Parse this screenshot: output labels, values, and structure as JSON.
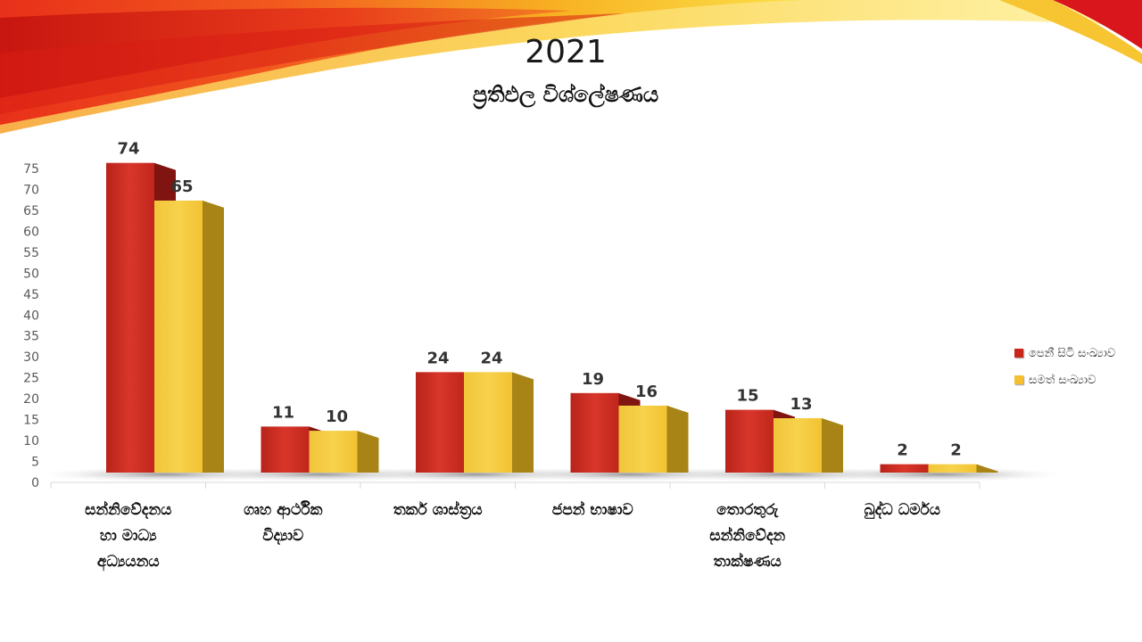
{
  "slide": {
    "title": "2021",
    "subtitle": "ප්‍රතිඵල විශ්ලේෂණය"
  },
  "colors": {
    "series1": "#c9271c",
    "series2": "#f4c030",
    "axis_text": "#595959",
    "grid_line": "#d9d9d9"
  },
  "chart_data": {
    "type": "bar",
    "style": "3d-clustered-column",
    "categories": [
      [
        "සන්නිවේදනය",
        "හා මාධ්‍ය",
        "අධ්‍යයනය"
      ],
      [
        "ගෘහ ආර්ථික",
        "විද්‍යාව"
      ],
      [
        "තර්ක ශාස්ත්‍රය"
      ],
      [
        "ජපන් භාෂාව"
      ],
      [
        "තොරතුරු",
        "සන්නිවේදන",
        "තාක්ෂණය"
      ],
      [
        "බුද්ධ ධර්මය"
      ]
    ],
    "series": [
      {
        "name": "පෙනී සිටි සංඛ්‍යාව",
        "values": [
          74,
          11,
          24,
          19,
          15,
          2
        ]
      },
      {
        "name": "සමත් සංඛ්‍යාව",
        "values": [
          65,
          10,
          24,
          16,
          13,
          2
        ]
      }
    ],
    "y_ticks": [
      0,
      5,
      10,
      15,
      20,
      25,
      30,
      35,
      40,
      45,
      50,
      55,
      60,
      65,
      70,
      75
    ],
    "ylim": [
      0,
      75
    ],
    "grid": false,
    "legend_position": "right",
    "data_labels": true
  }
}
